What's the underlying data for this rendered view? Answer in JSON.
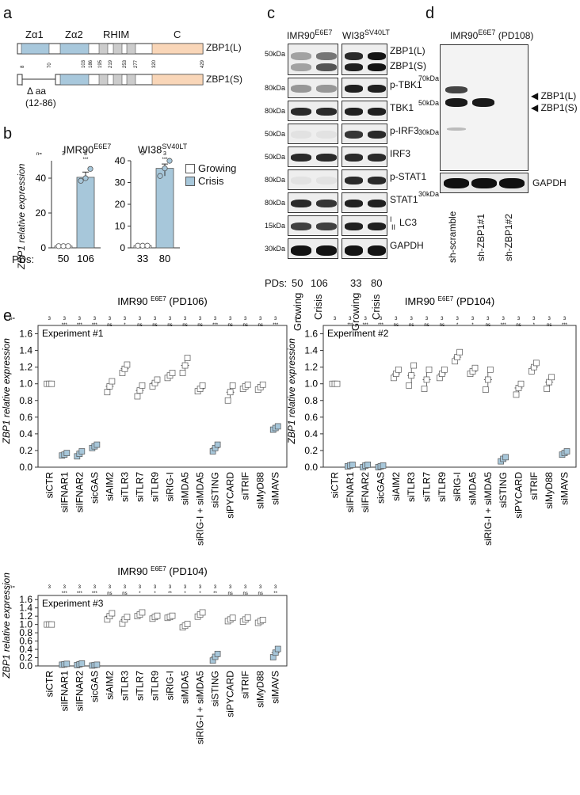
{
  "colors": {
    "crisis": "#a7c7da",
    "growing": "#ffffff",
    "zalpha": "#a8c8dc",
    "c_domain": "#f9d6b8",
    "rhim": "#cccccc",
    "blot_bg": "#eeeeee",
    "band": "#222222"
  },
  "panel_a": {
    "label": "a",
    "domains": [
      "Zα1",
      "Zα2",
      "RHIM",
      "C"
    ],
    "long_name": "ZBP1(L)",
    "short_name": "ZBP1(S)",
    "positions": [
      "8",
      "70",
      "103",
      "186",
      "195",
      "219",
      "253",
      "277",
      "320",
      "429"
    ],
    "deletion_line1": "Δ aa",
    "deletion_line2": "(12-86)"
  },
  "panel_b": {
    "label": "b",
    "ylabel": "ZBP1 relative expression",
    "pds_label": "PDs:",
    "n_label": "n=",
    "legend": [
      "Growing",
      "Crisis"
    ],
    "charts": [
      {
        "title": "IMR90",
        "title_sup": "E6E7",
        "n": [
          "3",
          "3"
        ],
        "sig": [
          "",
          "***"
        ],
        "pds": [
          "50",
          "106"
        ]
      },
      {
        "title": "WI38",
        "title_sup": "SV40LT",
        "n": [
          "3",
          "3"
        ],
        "sig": [
          "",
          "***"
        ],
        "pds": [
          "33",
          "80"
        ]
      }
    ]
  },
  "panel_c": {
    "label": "c",
    "cell_lines": [
      {
        "name": "IMR90",
        "sup": "E6E7"
      },
      {
        "name": "WI38",
        "sup": "SV40LT"
      }
    ],
    "rows": [
      {
        "mw": "50kDa",
        "labels": [
          "ZBP1(L)",
          "ZBP1(S)"
        ]
      },
      {
        "mw": "80kDa",
        "labels": [
          "p-TBK1"
        ]
      },
      {
        "mw": "80kDa",
        "labels": [
          "TBK1"
        ]
      },
      {
        "mw": "50kDa",
        "labels": [
          "p-IRF3"
        ]
      },
      {
        "mw": "50kDa",
        "labels": [
          "IRF3"
        ]
      },
      {
        "mw": "80kDa",
        "labels": [
          "p-STAT1"
        ]
      },
      {
        "mw": "80kDa",
        "labels": [
          "STAT1"
        ]
      },
      {
        "mw": "15kDa",
        "labels": [
          "LC3"
        ]
      },
      {
        "mw": "30kDa",
        "labels": [
          "GAPDH"
        ]
      }
    ],
    "lc3_marks": [
      "I",
      "II"
    ],
    "pds_label": "PDs:",
    "pds": [
      "50",
      "106",
      "33",
      "80"
    ],
    "lanes": [
      "Growing",
      "Crisis",
      "Growing",
      "Crisis"
    ]
  },
  "panel_d": {
    "label": "d",
    "title": "IMR90",
    "title_sup": "E6E7",
    "title_suffix": "(PD108)",
    "mw": [
      "70kDa",
      "50kDa",
      "30kDa",
      "30kDa"
    ],
    "labels": [
      "ZBP1(L)",
      "ZBP1(S)",
      "GAPDH"
    ],
    "lanes": [
      "sh-scramble",
      "sh-ZBP1#1",
      "sh-ZBP1#2"
    ]
  },
  "panel_e": {
    "label": "e",
    "ylabel": "ZBP1 relative expression",
    "n_label": "n=",
    "categories": [
      "siCTR",
      "siIFNAR1",
      "siIFNAR2",
      "sicGAS",
      "siAIM2",
      "siTLR3",
      "siTLR7",
      "siTLR9",
      "siRIG-I",
      "siMDA5",
      "siRIG-I + siMDA5",
      "siSTING",
      "siPYCARD",
      "siTRIF",
      "siMyD88",
      "siMAVS"
    ],
    "yticks": [
      "0.0",
      "0.2",
      "0.4",
      "0.6",
      "0.8",
      "1.0",
      "1.2",
      "1.4",
      "1.6"
    ]
  },
  "chart_data": [
    {
      "type": "bar",
      "title": "IMR90 E6E7",
      "ylabel": "ZBP1 relative expression",
      "categories": [
        "50",
        "106"
      ],
      "values": [
        1.0,
        40.5
      ],
      "points": [
        [
          1,
          1,
          1
        ],
        [
          38.5,
          40,
          43.5
        ]
      ],
      "ylim": [
        0,
        50
      ],
      "yticks": [
        0,
        20,
        40
      ],
      "legend": [
        "Growing",
        "Crisis"
      ]
    },
    {
      "type": "bar",
      "title": "WI38 SV40LT",
      "ylabel": "",
      "categories": [
        "33",
        "80"
      ],
      "values": [
        1.0,
        36.5
      ],
      "points": [
        [
          1,
          1,
          1
        ],
        [
          33,
          36.5,
          38.5
        ]
      ],
      "ylim": [
        0,
        40
      ],
      "yticks": [
        0,
        10,
        20,
        30,
        40
      ]
    },
    {
      "type": "scatter",
      "title": "IMR90 E6E7 (PD106)",
      "annotation": "Experiment #1",
      "ylabel": "ZBP1 relative expression",
      "ylim": [
        0,
        1.7
      ],
      "n": [
        "3",
        "3",
        "3",
        "3",
        "3",
        "3",
        "3",
        "3",
        "3",
        "3",
        "3",
        "3",
        "3",
        "3",
        "3",
        "3"
      ],
      "sig": [
        "",
        "***",
        "***",
        "***",
        "ns",
        "*",
        "ns",
        "ns",
        "ns",
        "ns",
        "ns",
        "***",
        "ns",
        "ns",
        "ns",
        "***"
      ],
      "values": [
        1.0,
        0.15,
        0.16,
        0.25,
        0.97,
        1.18,
        0.92,
        1.01,
        1.1,
        1.22,
        0.94,
        0.23,
        0.9,
        0.97,
        0.96,
        0.47
      ],
      "points": [
        [
          1.0,
          1.0,
          1.0
        ],
        [
          0.14,
          0.15,
          0.17
        ],
        [
          0.13,
          0.16,
          0.19
        ],
        [
          0.23,
          0.25,
          0.27
        ],
        [
          0.9,
          0.97,
          1.03
        ],
        [
          1.13,
          1.18,
          1.23
        ],
        [
          0.85,
          0.92,
          0.98
        ],
        [
          0.97,
          1.01,
          1.05
        ],
        [
          1.07,
          1.1,
          1.13
        ],
        [
          1.13,
          1.22,
          1.31
        ],
        [
          0.91,
          0.94,
          0.98
        ],
        [
          0.19,
          0.23,
          0.27
        ],
        [
          0.8,
          0.9,
          0.98
        ],
        [
          0.94,
          0.97,
          0.99
        ],
        [
          0.93,
          0.96,
          0.99
        ],
        [
          0.45,
          0.47,
          0.49
        ]
      ]
    },
    {
      "type": "scatter",
      "title": "IMR90 E6E7 (PD104)",
      "annotation": "Experiment #2",
      "ylabel": "ZBP1 relative expression",
      "ylim": [
        0,
        1.7
      ],
      "n": [
        "3",
        "3",
        "3",
        "3",
        "3",
        "3",
        "3",
        "3",
        "3",
        "3",
        "3",
        "3",
        "3",
        "3",
        "3",
        "3"
      ],
      "sig": [
        "",
        "***",
        "***",
        "***",
        "ns",
        "ns",
        "ns",
        "ns",
        "*",
        "*",
        "ns",
        "***",
        "ns",
        "*",
        "ns",
        "***"
      ],
      "values": [
        1.0,
        0.02,
        0.02,
        0.01,
        1.12,
        1.1,
        1.05,
        1.12,
        1.32,
        1.15,
        1.05,
        0.1,
        0.95,
        1.2,
        1.02,
        0.17
      ],
      "points": [
        [
          1.0,
          1.0,
          1.0
        ],
        [
          0.01,
          0.02,
          0.03
        ],
        [
          0.0,
          0.02,
          0.03
        ],
        [
          0.0,
          0.01,
          0.02
        ],
        [
          1.07,
          1.12,
          1.17
        ],
        [
          0.98,
          1.1,
          1.22
        ],
        [
          0.94,
          1.05,
          1.17
        ],
        [
          1.07,
          1.12,
          1.17
        ],
        [
          1.27,
          1.32,
          1.38
        ],
        [
          1.12,
          1.15,
          1.19
        ],
        [
          0.93,
          1.05,
          1.17
        ],
        [
          0.07,
          0.1,
          0.12
        ],
        [
          0.87,
          0.95,
          1.0
        ],
        [
          1.15,
          1.2,
          1.25
        ],
        [
          0.94,
          1.02,
          1.08
        ],
        [
          0.15,
          0.17,
          0.19
        ]
      ]
    },
    {
      "type": "scatter",
      "title": "IMR90 E6E7 (PD104)",
      "annotation": "Experiment #3",
      "ylabel": "ZBP1 relative expression",
      "ylim": [
        0,
        1.7
      ],
      "n": [
        "3",
        "3",
        "3",
        "3",
        "3",
        "3",
        "3",
        "3",
        "3",
        "3",
        "3",
        "3",
        "3",
        "3",
        "3",
        "3"
      ],
      "sig": [
        "",
        "***",
        "***",
        "***",
        "ns",
        "ns",
        "*",
        "*",
        "**",
        "*",
        "*",
        "**",
        "ns",
        "ns",
        "ns",
        "**"
      ],
      "values": [
        1.0,
        0.04,
        0.04,
        0.02,
        1.2,
        1.12,
        1.24,
        1.18,
        1.18,
        0.97,
        1.24,
        0.22,
        1.12,
        1.12,
        1.08,
        0.32
      ],
      "points": [
        [
          1.0,
          1.0,
          1.0
        ],
        [
          0.03,
          0.04,
          0.05
        ],
        [
          0.02,
          0.04,
          0.06
        ],
        [
          0.01,
          0.02,
          0.03
        ],
        [
          1.12,
          1.2,
          1.27
        ],
        [
          1.02,
          1.12,
          1.18
        ],
        [
          1.2,
          1.24,
          1.29
        ],
        [
          1.14,
          1.18,
          1.21
        ],
        [
          1.16,
          1.18,
          1.21
        ],
        [
          0.93,
          0.97,
          1.01
        ],
        [
          1.19,
          1.24,
          1.29
        ],
        [
          0.13,
          0.22,
          0.29
        ],
        [
          1.08,
          1.12,
          1.16
        ],
        [
          1.07,
          1.12,
          1.17
        ],
        [
          1.04,
          1.08,
          1.11
        ],
        [
          0.21,
          0.32,
          0.41
        ]
      ]
    }
  ]
}
